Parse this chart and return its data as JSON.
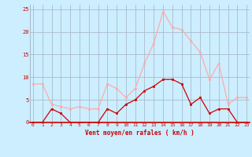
{
  "hours": [
    0,
    1,
    2,
    3,
    4,
    5,
    6,
    7,
    8,
    9,
    10,
    11,
    12,
    13,
    14,
    15,
    16,
    17,
    18,
    19,
    20,
    21,
    22,
    23
  ],
  "vent_moyen": [
    0,
    0,
    3,
    2,
    0,
    0,
    0,
    0,
    3,
    2,
    4,
    5,
    7,
    8,
    9.5,
    9.5,
    8.5,
    4,
    5.5,
    2,
    3,
    3,
    0,
    0
  ],
  "en_rafales": [
    8.5,
    8.5,
    4,
    3.5,
    3,
    3.5,
    3,
    3,
    8.5,
    7.5,
    5.5,
    7.5,
    13,
    17.5,
    24.5,
    21,
    20.5,
    18,
    15.5,
    9.5,
    13,
    4,
    5.5,
    5.5
  ],
  "line_color_moyen": "#cc0000",
  "line_color_rafales": "#ffaaaa",
  "bg_color": "#cceeff",
  "grid_color": "#aabbcc",
  "xlabel": "Vent moyen/en rafales ( km/h )",
  "xlabel_color": "#cc0000",
  "yticks": [
    0,
    5,
    10,
    15,
    20,
    25
  ],
  "ylim": [
    0,
    26
  ],
  "xlim": [
    -0.3,
    23.3
  ]
}
